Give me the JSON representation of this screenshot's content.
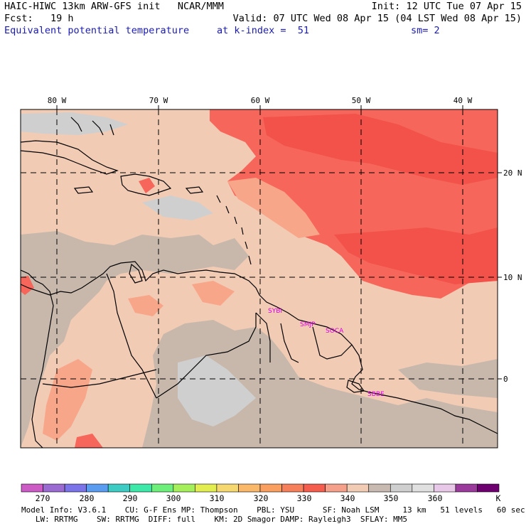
{
  "header": {
    "line1_left": "HAIC-HIWC 13km ARW-GFS init   NCAR/MMM",
    "line1_right": "Init: 12 UTC Tue 07 Apr 15",
    "line2_left": "Fcst:   19 h",
    "line2_right": "Valid: 07 UTC Wed 08 Apr 15 (04 LST Wed 08 Apr 15)",
    "line3_left": "Equivalent potential temperature",
    "line3_mid": "at k-index =  51",
    "line3_right": "sm= 2"
  },
  "map": {
    "lon_labels": [
      "80 W",
      "70 W",
      "60 W",
      "50 W",
      "40 W"
    ],
    "lat_labels": [
      "20 N",
      "10 N",
      "0"
    ],
    "stations": [
      "SYBI",
      "SMJP",
      "SOCA",
      "SBBE"
    ],
    "colors": {
      "bg": "#f2cbb5",
      "gray_dark": "#c8b8ac",
      "gray_light": "#cfcfcf",
      "warm": "#f8a689",
      "hot": "#f6665a",
      "hottest": "#f2524a",
      "station": "#e000e0"
    }
  },
  "colorbar": {
    "colors": [
      "#cc5bc6",
      "#9a6bd0",
      "#7b73e8",
      "#5a9cf0",
      "#3ecbc4",
      "#3ee8a8",
      "#6eee7a",
      "#a6ef5c",
      "#e2ee50",
      "#f5d870",
      "#f9b86a",
      "#f9a060",
      "#f7805c",
      "#f55e4e",
      "#f5a08a",
      "#f2cbb5",
      "#c8bab0",
      "#cfcfcf",
      "#e0e0e0",
      "#e8c8e8",
      "#9a3a9a",
      "#6e0070"
    ],
    "labels": [
      "270",
      "280",
      "290",
      "300",
      "310",
      "320",
      "330",
      "340",
      "350",
      "360",
      "K"
    ]
  },
  "footer": {
    "line1": "Model Info: V3.6.1    CU: G-F Ens MP: Thompson    PBL: YSU      SF: Noah LSM     13 km   51 levels   60 sec",
    "line2": "   LW: RRTMG    SW: RRTMG  DIFF: full    KM: 2D Smagor DAMP: Rayleigh3  SFLAY: MM5"
  }
}
